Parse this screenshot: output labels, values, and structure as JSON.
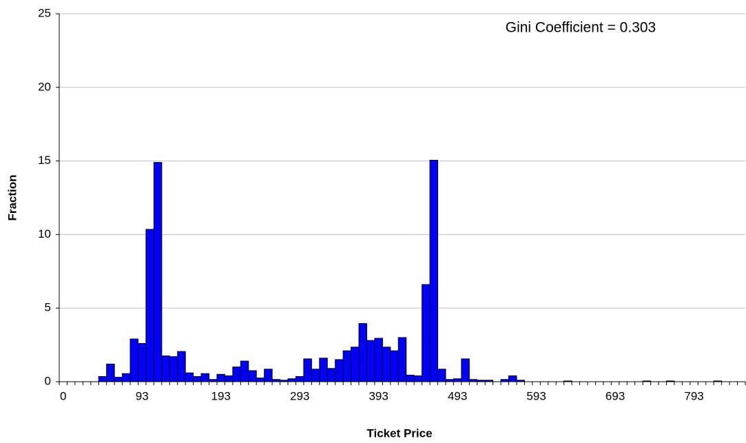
{
  "chart_data": {
    "type": "bar",
    "x_label": "Ticket Price",
    "y_label": "Fraction",
    "annotation": "Gini Coefficient  = 0.303",
    "categories": [
      "0",
      null,
      null,
      null,
      null,
      null,
      null,
      null,
      null,
      null,
      "93",
      null,
      null,
      null,
      null,
      null,
      null,
      null,
      null,
      null,
      "193",
      null,
      null,
      null,
      null,
      null,
      null,
      null,
      null,
      null,
      "293",
      null,
      null,
      null,
      null,
      null,
      null,
      null,
      null,
      null,
      "393",
      null,
      null,
      null,
      null,
      null,
      null,
      null,
      null,
      null,
      "493",
      null,
      null,
      null,
      null,
      null,
      null,
      null,
      null,
      null,
      "593",
      null,
      null,
      null,
      null,
      null,
      null,
      null,
      null,
      null,
      "693",
      null,
      null,
      null,
      null,
      null,
      null,
      null,
      null,
      null,
      "793",
      null,
      null,
      null,
      null,
      null,
      null
    ],
    "values": [
      0,
      0,
      0,
      0,
      0,
      0.35,
      1.2,
      0.3,
      0.55,
      2.9,
      2.6,
      10.35,
      14.9,
      1.75,
      1.7,
      2.05,
      0.6,
      0.35,
      0.55,
      0.15,
      0.5,
      0.4,
      1.0,
      1.4,
      0.75,
      0.25,
      0.85,
      0.15,
      0.1,
      0.2,
      0.35,
      1.55,
      0.85,
      1.6,
      0.9,
      1.5,
      2.1,
      2.35,
      3.95,
      2.8,
      2.95,
      2.35,
      2.1,
      3.0,
      0.45,
      0.4,
      6.6,
      15.05,
      0.85,
      0.15,
      0.2,
      1.55,
      0.15,
      0.1,
      0.1,
      0,
      0.15,
      0.4,
      0.1,
      0,
      0,
      0,
      0,
      0,
      0.05,
      0,
      0,
      0,
      0,
      0,
      0,
      0,
      0,
      0,
      0.05,
      0,
      0,
      0.05,
      0,
      0,
      0,
      0,
      0,
      0.05,
      0,
      0,
      0
    ],
    "color": "#0000ff",
    "ylim": [
      0,
      25
    ],
    "yticks": [
      0,
      5,
      10,
      15,
      20,
      25
    ],
    "grid": true
  }
}
